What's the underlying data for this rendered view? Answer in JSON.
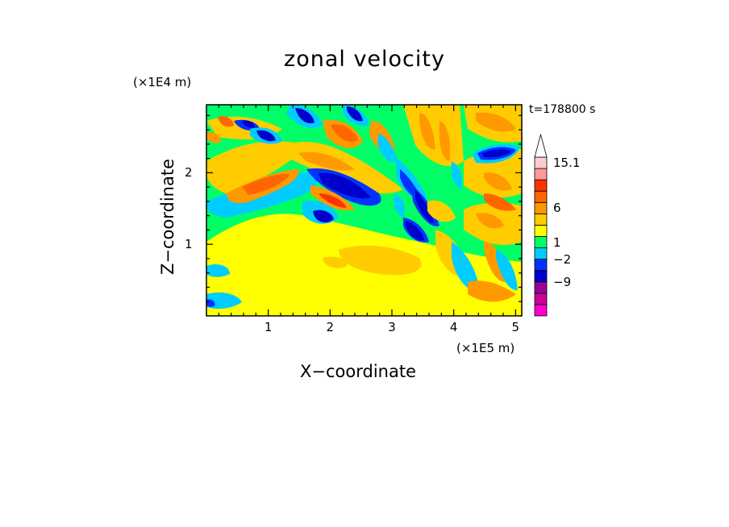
{
  "chart_data": {
    "type": "heatmap",
    "title": "zonal velocity",
    "xlabel": "X−coordinate",
    "ylabel": "Z−coordinate",
    "x_unit": "(×1E5 m)",
    "z_unit": "(×1E4 m)",
    "timestamp": "t=178800 s",
    "xlim": [
      0,
      5.1
    ],
    "ylim": [
      0,
      2.95
    ],
    "x_ticks": [
      "1",
      "2",
      "3",
      "4",
      "5"
    ],
    "y_ticks": [
      "1",
      "2"
    ],
    "colorbar": {
      "labels": [
        "15.1",
        "6",
        "1",
        "−2",
        "−9"
      ],
      "colors": [
        "#ff00cc",
        "#cc0099",
        "#990099",
        "#0000cc",
        "#0033ff",
        "#00ccff",
        "#00ff66",
        "#ffff00",
        "#ffcc00",
        "#ff9900",
        "#ff6600",
        "#ff3300",
        "#ff9999",
        "#ffcccc"
      ],
      "extend": "max"
    }
  }
}
